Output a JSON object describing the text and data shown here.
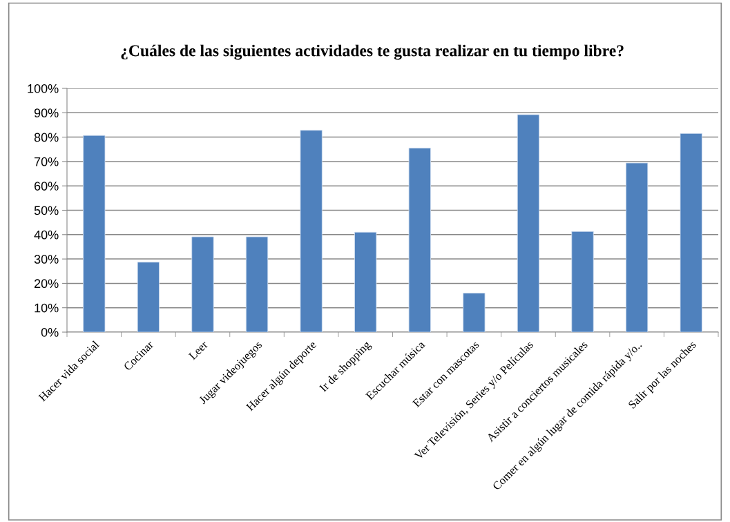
{
  "chart_data": {
    "type": "bar",
    "title": "¿Cuáles de las siguientes actividades te gusta realizar en tu tiempo libre?",
    "categories": [
      "Hacer vida social",
      "Cocinar",
      "Leer",
      "Jugar videojuegos",
      "Hacer algún deporte",
      "Ir de shopping",
      "Escuchar música",
      "Estar con mascotas",
      "Ver Televisión, Series y/o Películas",
      "Asistir a conciertos musicales",
      "Comer en algún lugar de comida rápida y/o..",
      "Salir por las noches"
    ],
    "values": [
      80.7,
      28.7,
      39.1,
      39.1,
      82.8,
      41.0,
      75.5,
      16.0,
      89.2,
      41.3,
      69.4,
      81.5
    ],
    "color": "#4f81bd",
    "ylim": [
      0,
      100
    ],
    "yticks": [
      {
        "value": 0,
        "label": "0%"
      },
      {
        "value": 10,
        "label": "10%"
      },
      {
        "value": 20,
        "label": "20%"
      },
      {
        "value": 30,
        "label": "30%"
      },
      {
        "value": 40,
        "label": "40%"
      },
      {
        "value": 50,
        "label": "50%"
      },
      {
        "value": 60,
        "label": "60%"
      },
      {
        "value": 70,
        "label": "70%"
      },
      {
        "value": 80,
        "label": "80%"
      },
      {
        "value": 90,
        "label": "90%"
      },
      {
        "value": 100,
        "label": "100%"
      }
    ],
    "grid": "y",
    "legend": false
  }
}
